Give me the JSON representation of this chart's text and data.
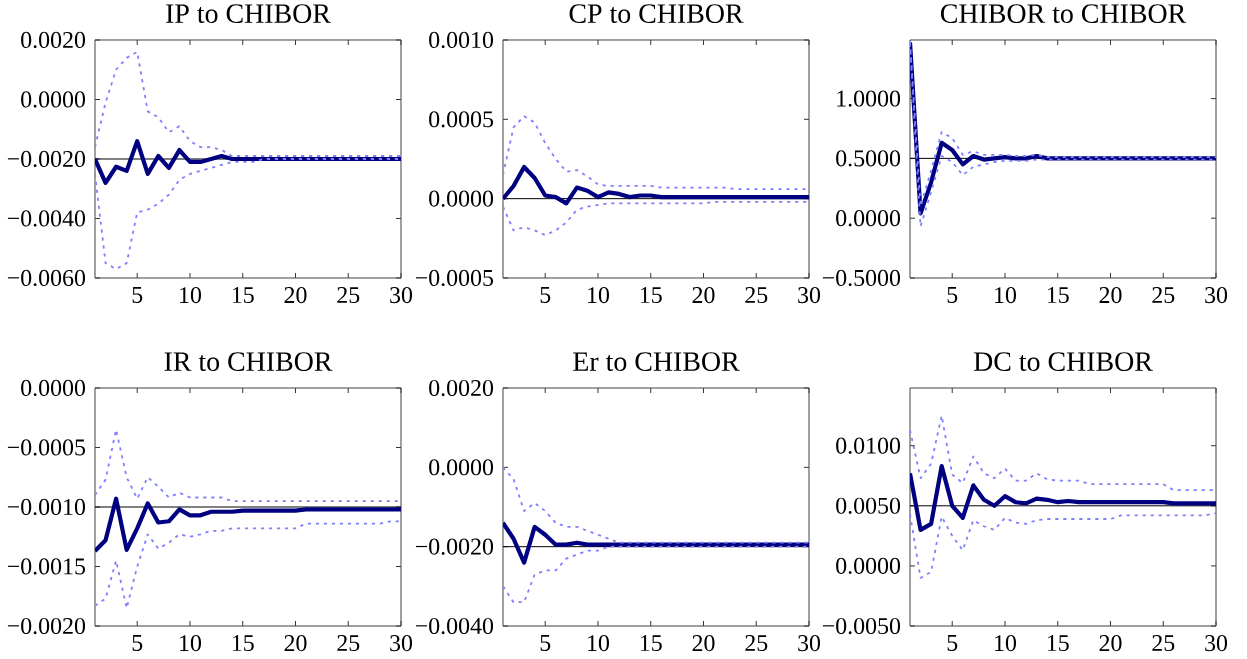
{
  "chart_data": [
    {
      "type": "line",
      "title": "IP to CHIBOR",
      "x": [
        1,
        2,
        3,
        4,
        5,
        6,
        7,
        8,
        9,
        10,
        11,
        12,
        13,
        14,
        15,
        16,
        17,
        18,
        19,
        20,
        21,
        22,
        23,
        24,
        25,
        26,
        27,
        28,
        29,
        30
      ],
      "xlim": [
        1,
        30
      ],
      "xticks": [
        5,
        10,
        15,
        20,
        25,
        30
      ],
      "ylim": [
        -0.006,
        0.002
      ],
      "yticks": [
        {
          "value": -0.006,
          "label": "−0.0060"
        },
        {
          "value": -0.004,
          "label": "−0.0040"
        },
        {
          "value": -0.002,
          "label": "−0.0020"
        },
        {
          "value": 0.0,
          "label": "0.0000"
        },
        {
          "value": 0.002,
          "label": "0.0020"
        }
      ],
      "ref_lines": [
        {
          "axis": "y",
          "value": -0.002,
          "color": "#000000"
        }
      ],
      "series": [
        {
          "color": "#8080ff",
          "line_style": "dotted",
          "values": [
            -0.0016,
            -0.0001,
            0.001,
            0.0014,
            0.0016,
            -0.0004,
            -0.0006,
            -0.0011,
            -0.0009,
            -0.0014,
            -0.0016,
            -0.0016,
            -0.0017,
            -0.0019,
            -0.0019,
            -0.0019,
            -0.0019,
            -0.0019,
            -0.0019,
            -0.0019,
            -0.0019,
            -0.0019,
            -0.0019,
            -0.0019,
            -0.0019,
            -0.0019,
            -0.0019,
            -0.0019,
            -0.0019,
            -0.0019
          ]
        },
        {
          "color": "#8080ff",
          "line_style": "dotted",
          "values": [
            -0.0025,
            -0.0055,
            -0.0057,
            -0.0055,
            -0.0038,
            -0.0037,
            -0.0035,
            -0.0032,
            -0.0027,
            -0.0025,
            -0.0024,
            -0.0023,
            -0.0022,
            -0.0021,
            -0.0021,
            -0.0021,
            -0.002,
            -0.002,
            -0.002,
            -0.002,
            -0.002,
            -0.002,
            -0.002,
            -0.002,
            -0.002,
            -0.002,
            -0.002,
            -0.002,
            -0.002,
            -0.002
          ]
        },
        {
          "color": "#000080",
          "line_style": "solid",
          "values": [
            -0.002,
            -0.0028,
            -0.00226,
            -0.0024,
            -0.0014,
            -0.0025,
            -0.0019,
            -0.0023,
            -0.0017,
            -0.0021,
            -0.0021,
            -0.002,
            -0.0019,
            -0.002,
            -0.002,
            -0.002,
            -0.002,
            -0.002,
            -0.002,
            -0.002,
            -0.002,
            -0.002,
            -0.002,
            -0.002,
            -0.002,
            -0.002,
            -0.002,
            -0.002,
            -0.002,
            -0.002
          ]
        }
      ]
    },
    {
      "type": "line",
      "title": "CP to CHIBOR",
      "x": [
        1,
        2,
        3,
        4,
        5,
        6,
        7,
        8,
        9,
        10,
        11,
        12,
        13,
        14,
        15,
        16,
        17,
        18,
        19,
        20,
        21,
        22,
        23,
        24,
        25,
        26,
        27,
        28,
        29,
        30
      ],
      "xlim": [
        1,
        30
      ],
      "xticks": [
        5,
        10,
        15,
        20,
        25,
        30
      ],
      "ylim": [
        -0.0005,
        0.001
      ],
      "yticks": [
        {
          "value": -0.0005,
          "label": "−0.0005"
        },
        {
          "value": 0.0,
          "label": "0.0000"
        },
        {
          "value": 0.0005,
          "label": "0.0005"
        },
        {
          "value": 0.001,
          "label": "0.0010"
        }
      ],
      "ref_lines": [
        {
          "axis": "y",
          "value": 0.0,
          "color": "#000000"
        }
      ],
      "series": [
        {
          "color": "#8080ff",
          "line_style": "dotted",
          "values": [
            0.00015,
            0.00045,
            0.00052,
            0.00048,
            0.00035,
            0.00025,
            0.00017,
            0.00018,
            0.00014,
            9e-05,
            8e-05,
            8e-05,
            8e-05,
            8e-05,
            8e-05,
            7e-05,
            7e-05,
            7e-05,
            7e-05,
            7e-05,
            7e-05,
            7e-05,
            6e-05,
            6e-05,
            6e-05,
            6e-05,
            6e-05,
            6e-05,
            6e-05,
            6e-05
          ]
        },
        {
          "color": "#8080ff",
          "line_style": "dotted",
          "values": [
            -5e-05,
            -0.0002,
            -0.00018,
            -0.0002,
            -0.00023,
            -0.0002,
            -0.00015,
            -7e-05,
            -5e-05,
            -4e-05,
            -3e-05,
            -3e-05,
            -3e-05,
            -3e-05,
            -3e-05,
            -3e-05,
            -3e-05,
            -3e-05,
            -3e-05,
            -3e-05,
            -2e-05,
            -2e-05,
            -2e-05,
            -2e-05,
            -2e-05,
            -2e-05,
            -2e-05,
            -2e-05,
            -2e-05,
            -2e-05
          ]
        },
        {
          "color": "#000080",
          "line_style": "solid",
          "values": [
            0.0,
            8e-05,
            0.0002,
            0.00013,
            2e-05,
            1e-05,
            -3e-05,
            7e-05,
            5e-05,
            1e-05,
            4e-05,
            3e-05,
            1e-05,
            2e-05,
            2e-05,
            1e-05,
            1e-05,
            1e-05,
            1e-05,
            1e-05,
            1e-05,
            1e-05,
            1e-05,
            1e-05,
            1e-05,
            1e-05,
            1e-05,
            1e-05,
            1e-05,
            1e-05
          ]
        }
      ]
    },
    {
      "type": "line",
      "title": "CHIBOR to CHIBOR",
      "x": [
        1,
        2,
        3,
        4,
        5,
        6,
        7,
        8,
        9,
        10,
        11,
        12,
        13,
        14,
        15,
        16,
        17,
        18,
        19,
        20,
        21,
        22,
        23,
        24,
        25,
        26,
        27,
        28,
        29,
        30
      ],
      "xlim": [
        1,
        30
      ],
      "xticks": [
        5,
        10,
        15,
        20,
        25,
        30
      ],
      "ylim": [
        -0.5,
        1.49
      ],
      "yticks": [
        {
          "value": -0.5,
          "label": "−0.5000"
        },
        {
          "value": 0.0,
          "label": "0.0000"
        },
        {
          "value": 0.5,
          "label": "0.5000"
        },
        {
          "value": 1.0,
          "label": "1.0000"
        }
      ],
      "ref_lines": [
        {
          "axis": "y",
          "value": 0.5,
          "color": "#000000"
        }
      ],
      "series": [
        {
          "color": "#8080ff",
          "line_style": "dotted",
          "values": [
            1.48,
            0.1,
            0.4,
            0.72,
            0.67,
            0.53,
            0.56,
            0.53,
            0.53,
            0.53,
            0.52,
            0.52,
            0.53,
            0.51,
            0.51,
            0.51,
            0.51,
            0.51,
            0.51,
            0.51,
            0.51,
            0.51,
            0.51,
            0.51,
            0.51,
            0.51,
            0.51,
            0.51,
            0.51,
            0.51
          ]
        },
        {
          "color": "#8080ff",
          "line_style": "dotted",
          "values": [
            1.46,
            -0.07,
            0.22,
            0.52,
            0.47,
            0.36,
            0.43,
            0.45,
            0.47,
            0.48,
            0.48,
            0.48,
            0.49,
            0.49,
            0.49,
            0.49,
            0.49,
            0.49,
            0.49,
            0.49,
            0.49,
            0.49,
            0.49,
            0.49,
            0.49,
            0.49,
            0.49,
            0.49,
            0.49,
            0.49
          ]
        },
        {
          "color": "#000080",
          "line_style": "solid",
          "values": [
            1.47,
            0.04,
            0.3,
            0.63,
            0.57,
            0.45,
            0.52,
            0.49,
            0.5,
            0.51,
            0.5,
            0.5,
            0.52,
            0.5,
            0.5,
            0.5,
            0.5,
            0.5,
            0.5,
            0.5,
            0.5,
            0.5,
            0.5,
            0.5,
            0.5,
            0.5,
            0.5,
            0.5,
            0.5,
            0.5
          ]
        }
      ]
    },
    {
      "type": "line",
      "title": "IR to CHIBOR",
      "x": [
        1,
        2,
        3,
        4,
        5,
        6,
        7,
        8,
        9,
        10,
        11,
        12,
        13,
        14,
        15,
        16,
        17,
        18,
        19,
        20,
        21,
        22,
        23,
        24,
        25,
        26,
        27,
        28,
        29,
        30
      ],
      "xlim": [
        1,
        30
      ],
      "xticks": [
        5,
        10,
        15,
        20,
        25,
        30
      ],
      "ylim": [
        -0.002,
        0.0
      ],
      "yticks": [
        {
          "value": -0.002,
          "label": "−0.0020"
        },
        {
          "value": -0.0015,
          "label": "−0.0015"
        },
        {
          "value": -0.001,
          "label": "−0.0010"
        },
        {
          "value": -0.0005,
          "label": "−0.0005"
        },
        {
          "value": 0.0,
          "label": "0.0000"
        }
      ],
      "ref_lines": [
        {
          "axis": "y",
          "value": -0.001,
          "color": "#000000"
        }
      ],
      "series": [
        {
          "color": "#8080ff",
          "line_style": "dotted",
          "values": [
            -0.0009,
            -0.00077,
            -0.00035,
            -0.00075,
            -0.00093,
            -0.00075,
            -0.00083,
            -0.00092,
            -0.00088,
            -0.00092,
            -0.00092,
            -0.00092,
            -0.00092,
            -0.00095,
            -0.00095,
            -0.00095,
            -0.00095,
            -0.00095,
            -0.00095,
            -0.00095,
            -0.00095,
            -0.00095,
            -0.00095,
            -0.00095,
            -0.00095,
            -0.00095,
            -0.00095,
            -0.00095,
            -0.00095,
            -0.00095
          ]
        },
        {
          "color": "#8080ff",
          "line_style": "dotted",
          "values": [
            -0.00183,
            -0.00177,
            -0.00145,
            -0.00185,
            -0.0015,
            -0.00123,
            -0.00135,
            -0.0013,
            -0.00123,
            -0.00125,
            -0.00123,
            -0.0012,
            -0.0012,
            -0.00118,
            -0.00118,
            -0.00118,
            -0.00118,
            -0.00118,
            -0.00118,
            -0.00118,
            -0.00114,
            -0.00114,
            -0.00114,
            -0.00114,
            -0.00114,
            -0.00114,
            -0.00114,
            -0.00114,
            -0.00112,
            -0.00112
          ]
        },
        {
          "color": "#000080",
          "line_style": "solid",
          "values": [
            -0.00137,
            -0.00128,
            -0.00093,
            -0.00136,
            -0.00118,
            -0.00097,
            -0.00113,
            -0.00112,
            -0.00102,
            -0.00107,
            -0.00107,
            -0.00104,
            -0.00104,
            -0.00104,
            -0.00103,
            -0.00103,
            -0.00103,
            -0.00103,
            -0.00103,
            -0.00103,
            -0.00102,
            -0.00102,
            -0.00102,
            -0.00102,
            -0.00102,
            -0.00102,
            -0.00102,
            -0.00102,
            -0.00102,
            -0.00102
          ]
        }
      ]
    },
    {
      "type": "line",
      "title": "Er to CHIBOR",
      "x": [
        1,
        2,
        3,
        4,
        5,
        6,
        7,
        8,
        9,
        10,
        11,
        12,
        13,
        14,
        15,
        16,
        17,
        18,
        19,
        20,
        21,
        22,
        23,
        24,
        25,
        26,
        27,
        28,
        29,
        30
      ],
      "xlim": [
        1,
        30
      ],
      "xticks": [
        5,
        10,
        15,
        20,
        25,
        30
      ],
      "ylim": [
        -0.004,
        0.002
      ],
      "yticks": [
        {
          "value": -0.004,
          "label": "−0.0040"
        },
        {
          "value": -0.002,
          "label": "−0.0020"
        },
        {
          "value": 0.0,
          "label": "0.0000"
        },
        {
          "value": 0.002,
          "label": "0.0020"
        }
      ],
      "ref_lines": [
        {
          "axis": "y",
          "value": -0.002,
          "color": "#000000"
        }
      ],
      "series": [
        {
          "color": "#8080ff",
          "line_style": "dotted",
          "values": [
            0.0,
            -0.0003,
            -0.0011,
            -0.0009,
            -0.0011,
            -0.0014,
            -0.0015,
            -0.0015,
            -0.0016,
            -0.0017,
            -0.0018,
            -0.0019,
            -0.0019,
            -0.0019,
            -0.0019,
            -0.0019,
            -0.0019,
            -0.0019,
            -0.0019,
            -0.0019,
            -0.0019,
            -0.0019,
            -0.0019,
            -0.0019,
            -0.0019,
            -0.0019,
            -0.0019,
            -0.0019,
            -0.0019,
            -0.0019
          ]
        },
        {
          "color": "#8080ff",
          "line_style": "dotted",
          "values": [
            -0.003,
            -0.0034,
            -0.0034,
            -0.0027,
            -0.0026,
            -0.0026,
            -0.0023,
            -0.0022,
            -0.0021,
            -0.0021,
            -0.002,
            -0.002,
            -0.002,
            -0.002,
            -0.002,
            -0.002,
            -0.002,
            -0.002,
            -0.002,
            -0.002,
            -0.002,
            -0.002,
            -0.002,
            -0.002,
            -0.002,
            -0.002,
            -0.002,
            -0.002,
            -0.002,
            -0.002
          ]
        },
        {
          "color": "#000080",
          "line_style": "solid",
          "values": [
            -0.0014,
            -0.0018,
            -0.0024,
            -0.0015,
            -0.0017,
            -0.00195,
            -0.00195,
            -0.0019,
            -0.00195,
            -0.00195,
            -0.00195,
            -0.00195,
            -0.00195,
            -0.00195,
            -0.00195,
            -0.00195,
            -0.00195,
            -0.00195,
            -0.00195,
            -0.00195,
            -0.00195,
            -0.00195,
            -0.00195,
            -0.00195,
            -0.00195,
            -0.00195,
            -0.00195,
            -0.00195,
            -0.00195,
            -0.00195
          ]
        }
      ]
    },
    {
      "type": "line",
      "title": "DC to CHIBOR",
      "x": [
        1,
        2,
        3,
        4,
        5,
        6,
        7,
        8,
        9,
        10,
        11,
        12,
        13,
        14,
        15,
        16,
        17,
        18,
        19,
        20,
        21,
        22,
        23,
        24,
        25,
        26,
        27,
        28,
        29,
        30
      ],
      "xlim": [
        1,
        30
      ],
      "xticks": [
        5,
        10,
        15,
        20,
        25,
        30
      ],
      "ylim": [
        -0.005,
        0.0148
      ],
      "yticks": [
        {
          "value": -0.005,
          "label": "−0.0050"
        },
        {
          "value": 0.0,
          "label": "0.0000"
        },
        {
          "value": 0.005,
          "label": "0.0050"
        },
        {
          "value": 0.01,
          "label": "0.0100"
        }
      ],
      "ref_lines": [
        {
          "axis": "y",
          "value": 0.005,
          "color": "#000000"
        }
      ],
      "series": [
        {
          "color": "#8080ff",
          "line_style": "dotted",
          "values": [
            0.0113,
            0.0073,
            0.0085,
            0.0125,
            0.0076,
            0.0069,
            0.0091,
            0.0077,
            0.0073,
            0.0081,
            0.0071,
            0.0071,
            0.0077,
            0.0072,
            0.0071,
            0.0071,
            0.0071,
            0.0068,
            0.0068,
            0.0068,
            0.0068,
            0.0068,
            0.0068,
            0.0068,
            0.0068,
            0.0063,
            0.0063,
            0.0063,
            0.0063,
            0.0063
          ]
        },
        {
          "color": "#8080ff",
          "line_style": "dotted",
          "values": [
            0.0043,
            -0.001,
            -0.0005,
            0.0041,
            0.0025,
            0.0013,
            0.0038,
            0.0033,
            0.003,
            0.004,
            0.0036,
            0.0035,
            0.0038,
            0.0039,
            0.0039,
            0.0039,
            0.0039,
            0.0039,
            0.0039,
            0.0039,
            0.0042,
            0.0042,
            0.0042,
            0.0042,
            0.0042,
            0.0042,
            0.0042,
            0.0042,
            0.0042,
            0.0044
          ]
        },
        {
          "color": "#000080",
          "line_style": "solid",
          "values": [
            0.0077,
            0.003,
            0.0035,
            0.0083,
            0.005,
            0.004,
            0.0067,
            0.0055,
            0.005,
            0.0058,
            0.0053,
            0.0052,
            0.0056,
            0.0055,
            0.0053,
            0.0054,
            0.0053,
            0.0053,
            0.0053,
            0.0053,
            0.0053,
            0.0053,
            0.0053,
            0.0053,
            0.0053,
            0.0052,
            0.0052,
            0.0052,
            0.0052,
            0.0052
          ]
        }
      ]
    }
  ]
}
